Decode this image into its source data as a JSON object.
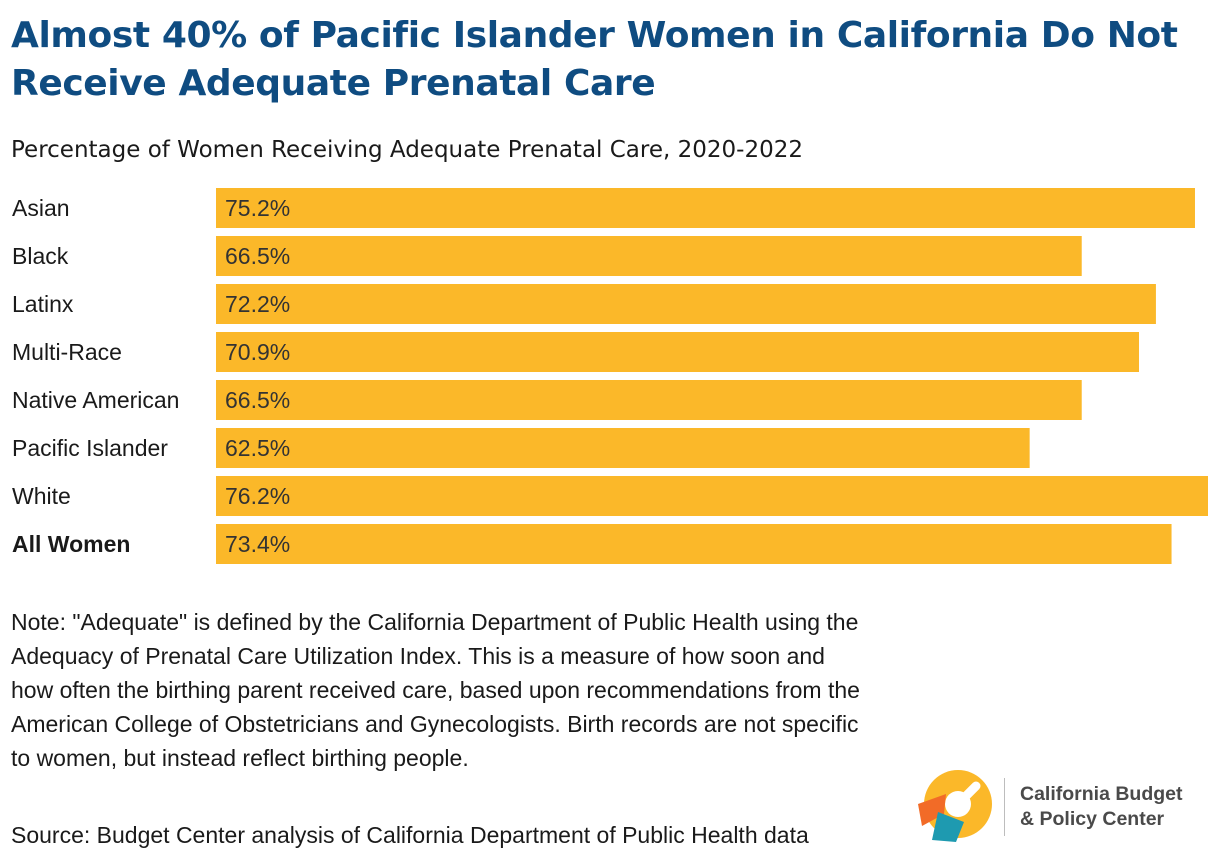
{
  "title": "Almost 40% of Pacific Islander Women in California Do Not Receive Adequate Prenatal Care",
  "chart_data": {
    "type": "bar",
    "orientation": "horizontal",
    "title": "Percentage of Women Receiving Adequate Prenatal Care, 2020-2022",
    "categories": [
      "Asian",
      "Black",
      "Latinx",
      "Multi-Race",
      "Native American",
      "Pacific Islander",
      "White",
      "All Women"
    ],
    "values": [
      75.2,
      66.5,
      72.2,
      70.9,
      66.5,
      62.5,
      76.2,
      73.4
    ],
    "value_labels": [
      "75.2%",
      "66.5%",
      "72.2%",
      "70.9%",
      "66.5%",
      "62.5%",
      "76.2%",
      "73.4%"
    ],
    "emphasized_category": "All Women",
    "bar_color": "#FBB829",
    "xlim": [
      0,
      76.2
    ],
    "xlabel": "",
    "ylabel": "",
    "grid": false
  },
  "note": "Note: \"Adequate\" is defined by the California Department of Public Health using the Adequacy of Prenatal Care Utilization Index. This is a measure of how soon and how often the birthing parent received care, based upon recommendations from the American College of Obstetricians and Gynecologists. Birth records are not specific to women, but instead reflect birthing people.",
  "source": "Source: Budget Center analysis of California Department of Public Health data",
  "logo": {
    "line1": "California Budget",
    "line2": "& Policy Center",
    "colors": {
      "yellow": "#FBB829",
      "orange": "#F26B27",
      "teal": "#1E9AB0",
      "text": "#4a4a4a"
    }
  },
  "colors": {
    "title": "#0f4c81",
    "text": "#1a1a1a",
    "bar": "#FBB829"
  }
}
